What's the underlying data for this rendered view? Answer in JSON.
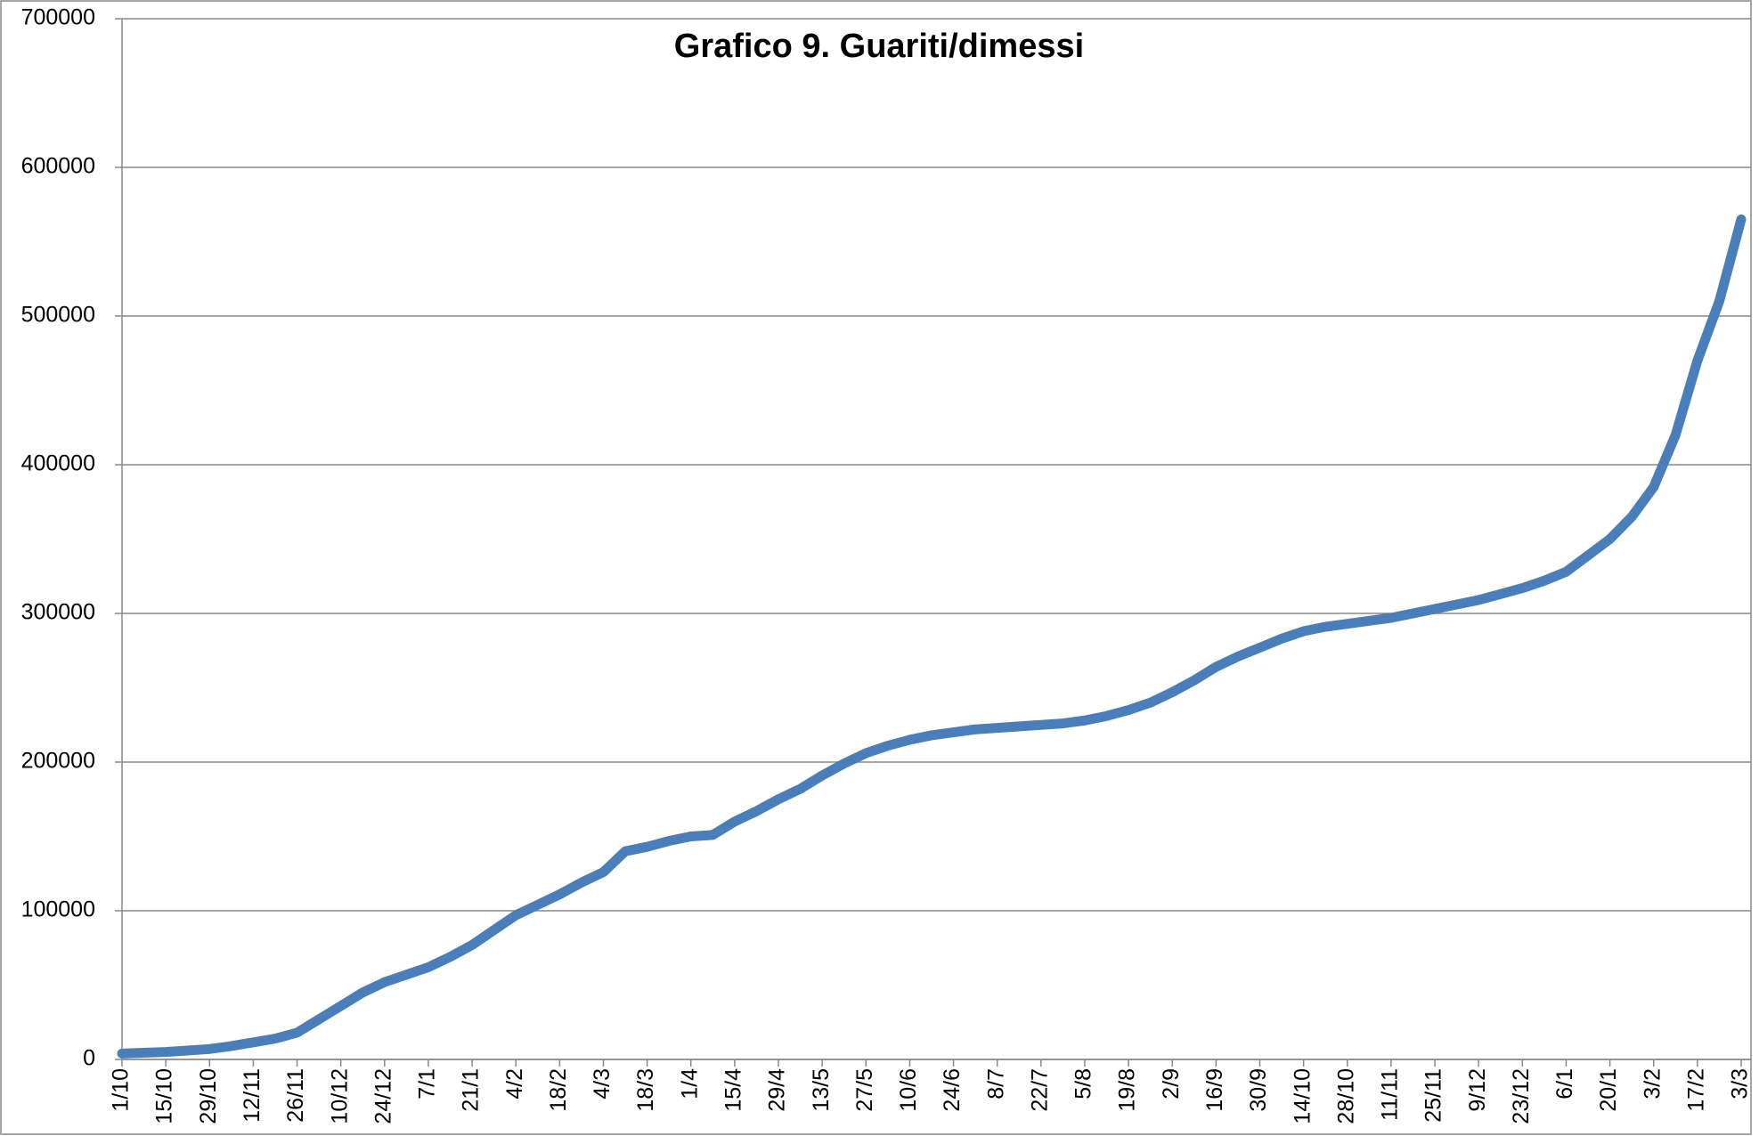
{
  "chart_data": {
    "type": "line",
    "title": "Grafico 9. Guariti/dimessi",
    "categories": [
      "1/10",
      null,
      "15/10",
      null,
      "29/10",
      null,
      "12/11",
      null,
      "26/11",
      null,
      "10/12",
      null,
      "24/12",
      null,
      "7/1",
      null,
      "21/1",
      null,
      "4/2",
      null,
      "18/2",
      null,
      "4/3",
      null,
      "18/3",
      null,
      "1/4",
      null,
      "15/4",
      null,
      "29/4",
      null,
      "13/5",
      null,
      "27/5",
      null,
      "10/6",
      null,
      "24/6",
      null,
      "8/7",
      null,
      "22/7",
      null,
      "5/8",
      null,
      "19/8",
      null,
      "2/9",
      null,
      "16/9",
      null,
      "30/9",
      null,
      "14/10",
      null,
      "28/10",
      null,
      "11/11",
      null,
      "25/11",
      null,
      "9/12",
      null,
      "23/12",
      null,
      "6/1",
      null,
      "20/1",
      null,
      "3/2",
      null,
      "17/2",
      null,
      "3/3"
    ],
    "series": [
      {
        "name": "Guariti/dimessi",
        "color": "#4a7ebb",
        "values": [
          4000,
          4500,
          5000,
          6000,
          7000,
          9000,
          11500,
          14000,
          18000,
          27000,
          36000,
          45000,
          52000,
          57000,
          62000,
          69000,
          77000,
          87000,
          97000,
          104000,
          111000,
          119000,
          126000,
          140000,
          143000,
          147000,
          150000,
          151000,
          160000,
          167000,
          175000,
          182000,
          191000,
          199000,
          206000,
          211000,
          215000,
          218000,
          220000,
          222000,
          223000,
          224000,
          225000,
          226000,
          228000,
          231000,
          235000,
          240000,
          247000,
          255000,
          264000,
          271000,
          277000,
          283000,
          288000,
          291000,
          293000,
          295000,
          297000,
          300000,
          303000,
          306000,
          309000,
          313000,
          317000,
          322000,
          328000,
          339000,
          350000,
          365000,
          385000,
          420000,
          470000,
          510000,
          565000
        ]
      }
    ],
    "ylim": [
      0,
      700000
    ],
    "yticks": [
      0,
      100000,
      200000,
      300000,
      400000,
      500000,
      600000,
      700000
    ],
    "grid": true
  }
}
